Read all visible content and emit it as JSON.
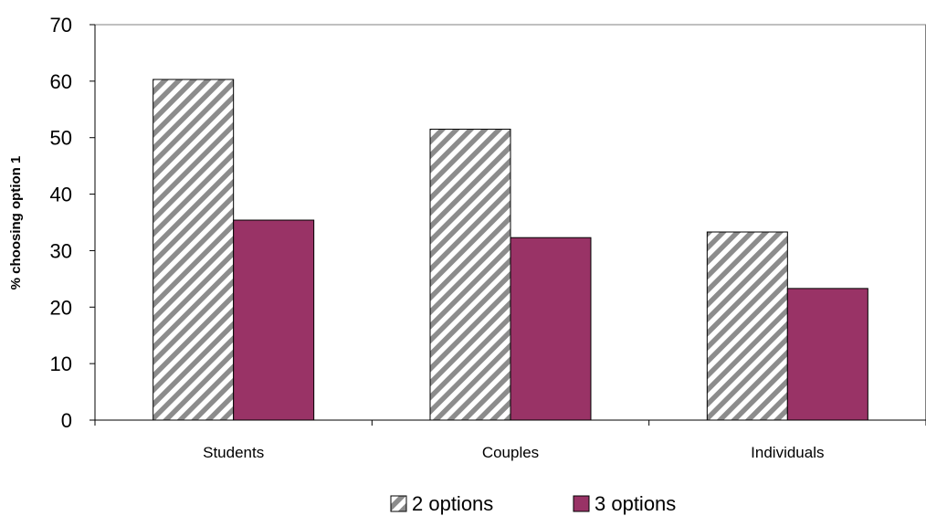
{
  "chart_data": {
    "type": "bar",
    "title": "",
    "xlabel": "",
    "ylabel": "% choosing option 1",
    "ylim": [
      0,
      70
    ],
    "yticks": [
      0,
      10,
      20,
      30,
      40,
      50,
      60,
      70
    ],
    "grid": false,
    "legend": "bottom",
    "categories": [
      "Students",
      "Couples",
      "Individuals"
    ],
    "series": [
      {
        "name": "2 options",
        "values": [
          60.3,
          51.5,
          33.3
        ],
        "pattern": "diagonal-stripes",
        "color": "#8c8c8c"
      },
      {
        "name": "3 options",
        "values": [
          35.4,
          32.3,
          23.3
        ],
        "color": "#993366"
      }
    ]
  }
}
